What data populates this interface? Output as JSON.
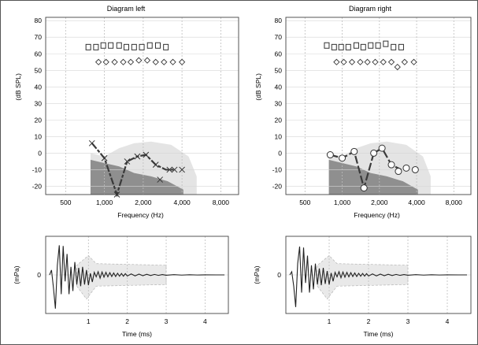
{
  "audiograms": [
    {
      "id": "left",
      "title": "Diagram left",
      "xlabel": "Frequency (Hz)",
      "ylabel": "(dB SPL)",
      "x_ticks": [
        "500",
        "1,000",
        "2,000",
        "4,000",
        "8,000"
      ],
      "y_ticks": [
        "80",
        "70",
        "60",
        "50",
        "40",
        "30",
        "20",
        "10",
        "0",
        "-10",
        "-20"
      ],
      "squares": [
        [
          750,
          64
        ],
        [
          860,
          64
        ],
        [
          980,
          65
        ],
        [
          1120,
          65
        ],
        [
          1300,
          65
        ],
        [
          1480,
          64
        ],
        [
          1700,
          64
        ],
        [
          1950,
          64
        ],
        [
          2250,
          65
        ],
        [
          2600,
          65
        ],
        [
          3000,
          64
        ]
      ],
      "diamonds": [
        [
          900,
          55
        ],
        [
          1030,
          55
        ],
        [
          1200,
          55
        ],
        [
          1400,
          55
        ],
        [
          1600,
          55
        ],
        [
          1850,
          56
        ],
        [
          2150,
          56
        ],
        [
          2500,
          55
        ],
        [
          2900,
          55
        ],
        [
          3400,
          55
        ],
        [
          4000,
          55
        ]
      ],
      "line_points": [
        [
          800,
          6
        ],
        [
          1000,
          -3
        ],
        [
          1250,
          -25
        ],
        [
          1500,
          -5
        ],
        [
          1800,
          -2
        ],
        [
          2100,
          -1
        ],
        [
          2500,
          -7
        ],
        [
          3000,
          -10
        ],
        [
          3500,
          -10
        ]
      ],
      "markers": [
        [
          800,
          6
        ],
        [
          1000,
          -3
        ],
        [
          1250,
          -25
        ],
        [
          1500,
          -5
        ],
        [
          1800,
          -2
        ],
        [
          2100,
          -1
        ],
        [
          2500,
          -7
        ],
        [
          2700,
          -16
        ],
        [
          3200,
          -10
        ],
        [
          3500,
          -10
        ],
        [
          4000,
          -10
        ]
      ]
    },
    {
      "id": "right",
      "title": "Diagram right",
      "xlabel": "Frequency (Hz)",
      "ylabel": "(dB SPL)",
      "x_ticks": [
        "500",
        "1,000",
        "2,000",
        "4,000",
        "8,000"
      ],
      "y_ticks": [
        "80",
        "70",
        "60",
        "50",
        "40",
        "30",
        "20",
        "10",
        "0",
        "-10",
        "-20"
      ],
      "squares": [
        [
          750,
          65
        ],
        [
          860,
          64
        ],
        [
          980,
          64
        ],
        [
          1120,
          64
        ],
        [
          1300,
          65
        ],
        [
          1480,
          64
        ],
        [
          1700,
          65
        ],
        [
          1950,
          65
        ],
        [
          2250,
          66
        ],
        [
          2600,
          64
        ],
        [
          3000,
          64
        ]
      ],
      "diamonds": [
        [
          900,
          55
        ],
        [
          1030,
          55
        ],
        [
          1200,
          55
        ],
        [
          1400,
          55
        ],
        [
          1600,
          55
        ],
        [
          1850,
          55
        ],
        [
          2150,
          55
        ],
        [
          2500,
          55
        ],
        [
          2800,
          52
        ],
        [
          3200,
          55
        ],
        [
          3800,
          55
        ]
      ],
      "line_points": [
        [
          800,
          -1
        ],
        [
          1000,
          -3
        ],
        [
          1250,
          1
        ],
        [
          1500,
          -21
        ],
        [
          1800,
          0
        ],
        [
          2100,
          3
        ],
        [
          2500,
          -7
        ],
        [
          3000,
          -10
        ]
      ],
      "markers": [
        [
          800,
          -1
        ],
        [
          1000,
          -3
        ],
        [
          1250,
          1
        ],
        [
          1500,
          -21
        ],
        [
          1800,
          0
        ],
        [
          2100,
          3
        ],
        [
          2500,
          -7
        ],
        [
          2850,
          -11
        ],
        [
          3300,
          -9
        ],
        [
          3900,
          -10
        ]
      ]
    }
  ],
  "waveforms": [
    {
      "id": "left",
      "xlabel": "Time (ms)",
      "ylabel": "(mPa)",
      "y_zero_label": "0",
      "x_ticks": [
        "1",
        "2",
        "3",
        "4"
      ],
      "samples": [
        [
          0.0,
          0.0
        ],
        [
          0.05,
          0.15
        ],
        [
          0.1,
          -0.4
        ],
        [
          0.15,
          -1.05
        ],
        [
          0.2,
          0.3
        ],
        [
          0.25,
          0.92
        ],
        [
          0.3,
          -0.6
        ],
        [
          0.35,
          0.9
        ],
        [
          0.4,
          -0.2
        ],
        [
          0.45,
          0.65
        ],
        [
          0.5,
          -0.6
        ],
        [
          0.55,
          0.25
        ],
        [
          0.6,
          -0.5
        ],
        [
          0.65,
          0.4
        ],
        [
          0.7,
          -0.3
        ],
        [
          0.75,
          0.22
        ],
        [
          0.8,
          -0.35
        ],
        [
          0.85,
          0.25
        ],
        [
          0.9,
          -0.3
        ],
        [
          0.95,
          0.15
        ],
        [
          1.0,
          -0.32
        ],
        [
          1.05,
          0.05
        ],
        [
          1.1,
          -0.22
        ],
        [
          1.15,
          0.08
        ],
        [
          1.2,
          -0.06
        ],
        [
          1.25,
          0.1
        ],
        [
          1.3,
          -0.1
        ],
        [
          1.35,
          0.09
        ],
        [
          1.4,
          -0.07
        ],
        [
          1.45,
          0.08
        ],
        [
          1.5,
          -0.06
        ],
        [
          1.55,
          0.07
        ],
        [
          1.6,
          -0.05
        ],
        [
          1.65,
          0.06
        ],
        [
          1.7,
          -0.05
        ],
        [
          1.75,
          0.05
        ],
        [
          1.8,
          -0.04
        ],
        [
          1.85,
          0.045
        ],
        [
          1.9,
          -0.04
        ],
        [
          1.95,
          0.04
        ],
        [
          2.0,
          -0.035
        ],
        [
          2.1,
          0.03
        ],
        [
          2.2,
          -0.03
        ],
        [
          2.3,
          0.025
        ],
        [
          2.4,
          -0.025
        ],
        [
          2.5,
          0.02
        ],
        [
          2.6,
          -0.02
        ],
        [
          2.7,
          0.015
        ],
        [
          2.8,
          -0.015
        ],
        [
          2.9,
          0.01
        ],
        [
          3.0,
          -0.01
        ],
        [
          3.2,
          0.008
        ],
        [
          3.4,
          -0.006
        ],
        [
          3.6,
          0.004
        ],
        [
          3.8,
          -0.003
        ],
        [
          4.0,
          0.002
        ],
        [
          4.3,
          0.0
        ],
        [
          4.5,
          0.0
        ]
      ]
    },
    {
      "id": "right",
      "xlabel": "Time (ms)",
      "ylabel": "(mPa)",
      "y_zero_label": "0",
      "x_ticks": [
        "1",
        "2",
        "3",
        "4"
      ],
      "samples": [
        [
          0.0,
          0.0
        ],
        [
          0.05,
          0.1
        ],
        [
          0.1,
          -0.35
        ],
        [
          0.15,
          -1.0
        ],
        [
          0.2,
          0.35
        ],
        [
          0.25,
          0.88
        ],
        [
          0.3,
          -0.55
        ],
        [
          0.35,
          0.85
        ],
        [
          0.4,
          -0.25
        ],
        [
          0.45,
          0.6
        ],
        [
          0.5,
          -0.55
        ],
        [
          0.55,
          0.3
        ],
        [
          0.6,
          -0.45
        ],
        [
          0.65,
          0.35
        ],
        [
          0.7,
          -0.3
        ],
        [
          0.75,
          0.2
        ],
        [
          0.8,
          -0.32
        ],
        [
          0.85,
          0.22
        ],
        [
          0.9,
          -0.28
        ],
        [
          0.95,
          0.12
        ],
        [
          1.0,
          -0.3
        ],
        [
          1.05,
          0.06
        ],
        [
          1.1,
          -0.2
        ],
        [
          1.15,
          0.08
        ],
        [
          1.2,
          -0.06
        ],
        [
          1.25,
          0.1
        ],
        [
          1.3,
          -0.09
        ],
        [
          1.35,
          0.09
        ],
        [
          1.4,
          -0.07
        ],
        [
          1.45,
          0.08
        ],
        [
          1.5,
          -0.06
        ],
        [
          1.55,
          0.07
        ],
        [
          1.6,
          -0.05
        ],
        [
          1.65,
          0.06
        ],
        [
          1.7,
          -0.05
        ],
        [
          1.75,
          0.05
        ],
        [
          1.8,
          -0.04
        ],
        [
          1.85,
          0.045
        ],
        [
          1.9,
          -0.04
        ],
        [
          1.95,
          0.04
        ],
        [
          2.0,
          -0.035
        ],
        [
          2.1,
          0.03
        ],
        [
          2.2,
          -0.03
        ],
        [
          2.3,
          0.025
        ],
        [
          2.4,
          -0.025
        ],
        [
          2.5,
          0.02
        ],
        [
          2.6,
          -0.02
        ],
        [
          2.7,
          0.015
        ],
        [
          2.8,
          -0.015
        ],
        [
          2.9,
          0.01
        ],
        [
          3.0,
          -0.01
        ],
        [
          3.2,
          0.008
        ],
        [
          3.4,
          -0.006
        ],
        [
          3.6,
          0.004
        ],
        [
          3.8,
          -0.003
        ],
        [
          4.0,
          0.002
        ],
        [
          4.3,
          0.0
        ],
        [
          4.5,
          0.0
        ]
      ]
    }
  ],
  "chart_data": [
    {
      "type": "scatter",
      "title": "Diagram left",
      "xlabel": "Frequency (Hz)",
      "ylabel": "(dB SPL)",
      "x_scale": "log",
      "xlim": [
        350,
        11000
      ],
      "ylim": [
        -25,
        82
      ],
      "series": [
        "squares",
        "diamonds",
        "line_points",
        "markers"
      ]
    },
    {
      "type": "scatter",
      "title": "Diagram right",
      "xlabel": "Frequency (Hz)",
      "ylabel": "(dB SPL)",
      "x_scale": "log",
      "xlim": [
        350,
        11000
      ],
      "ylim": [
        -25,
        82
      ],
      "series": [
        "squares",
        "diamonds",
        "line_points",
        "markers"
      ]
    },
    {
      "type": "line",
      "xlabel": "Time (ms)",
      "ylabel": "(mPa)",
      "xlim": [
        -0.1,
        4.6
      ],
      "ylim": [
        -1.2,
        1.2
      ]
    },
    {
      "type": "line",
      "xlabel": "Time (ms)",
      "ylabel": "(mPa)",
      "xlim": [
        -0.1,
        4.6
      ],
      "ylim": [
        -1.2,
        1.2
      ]
    }
  ]
}
